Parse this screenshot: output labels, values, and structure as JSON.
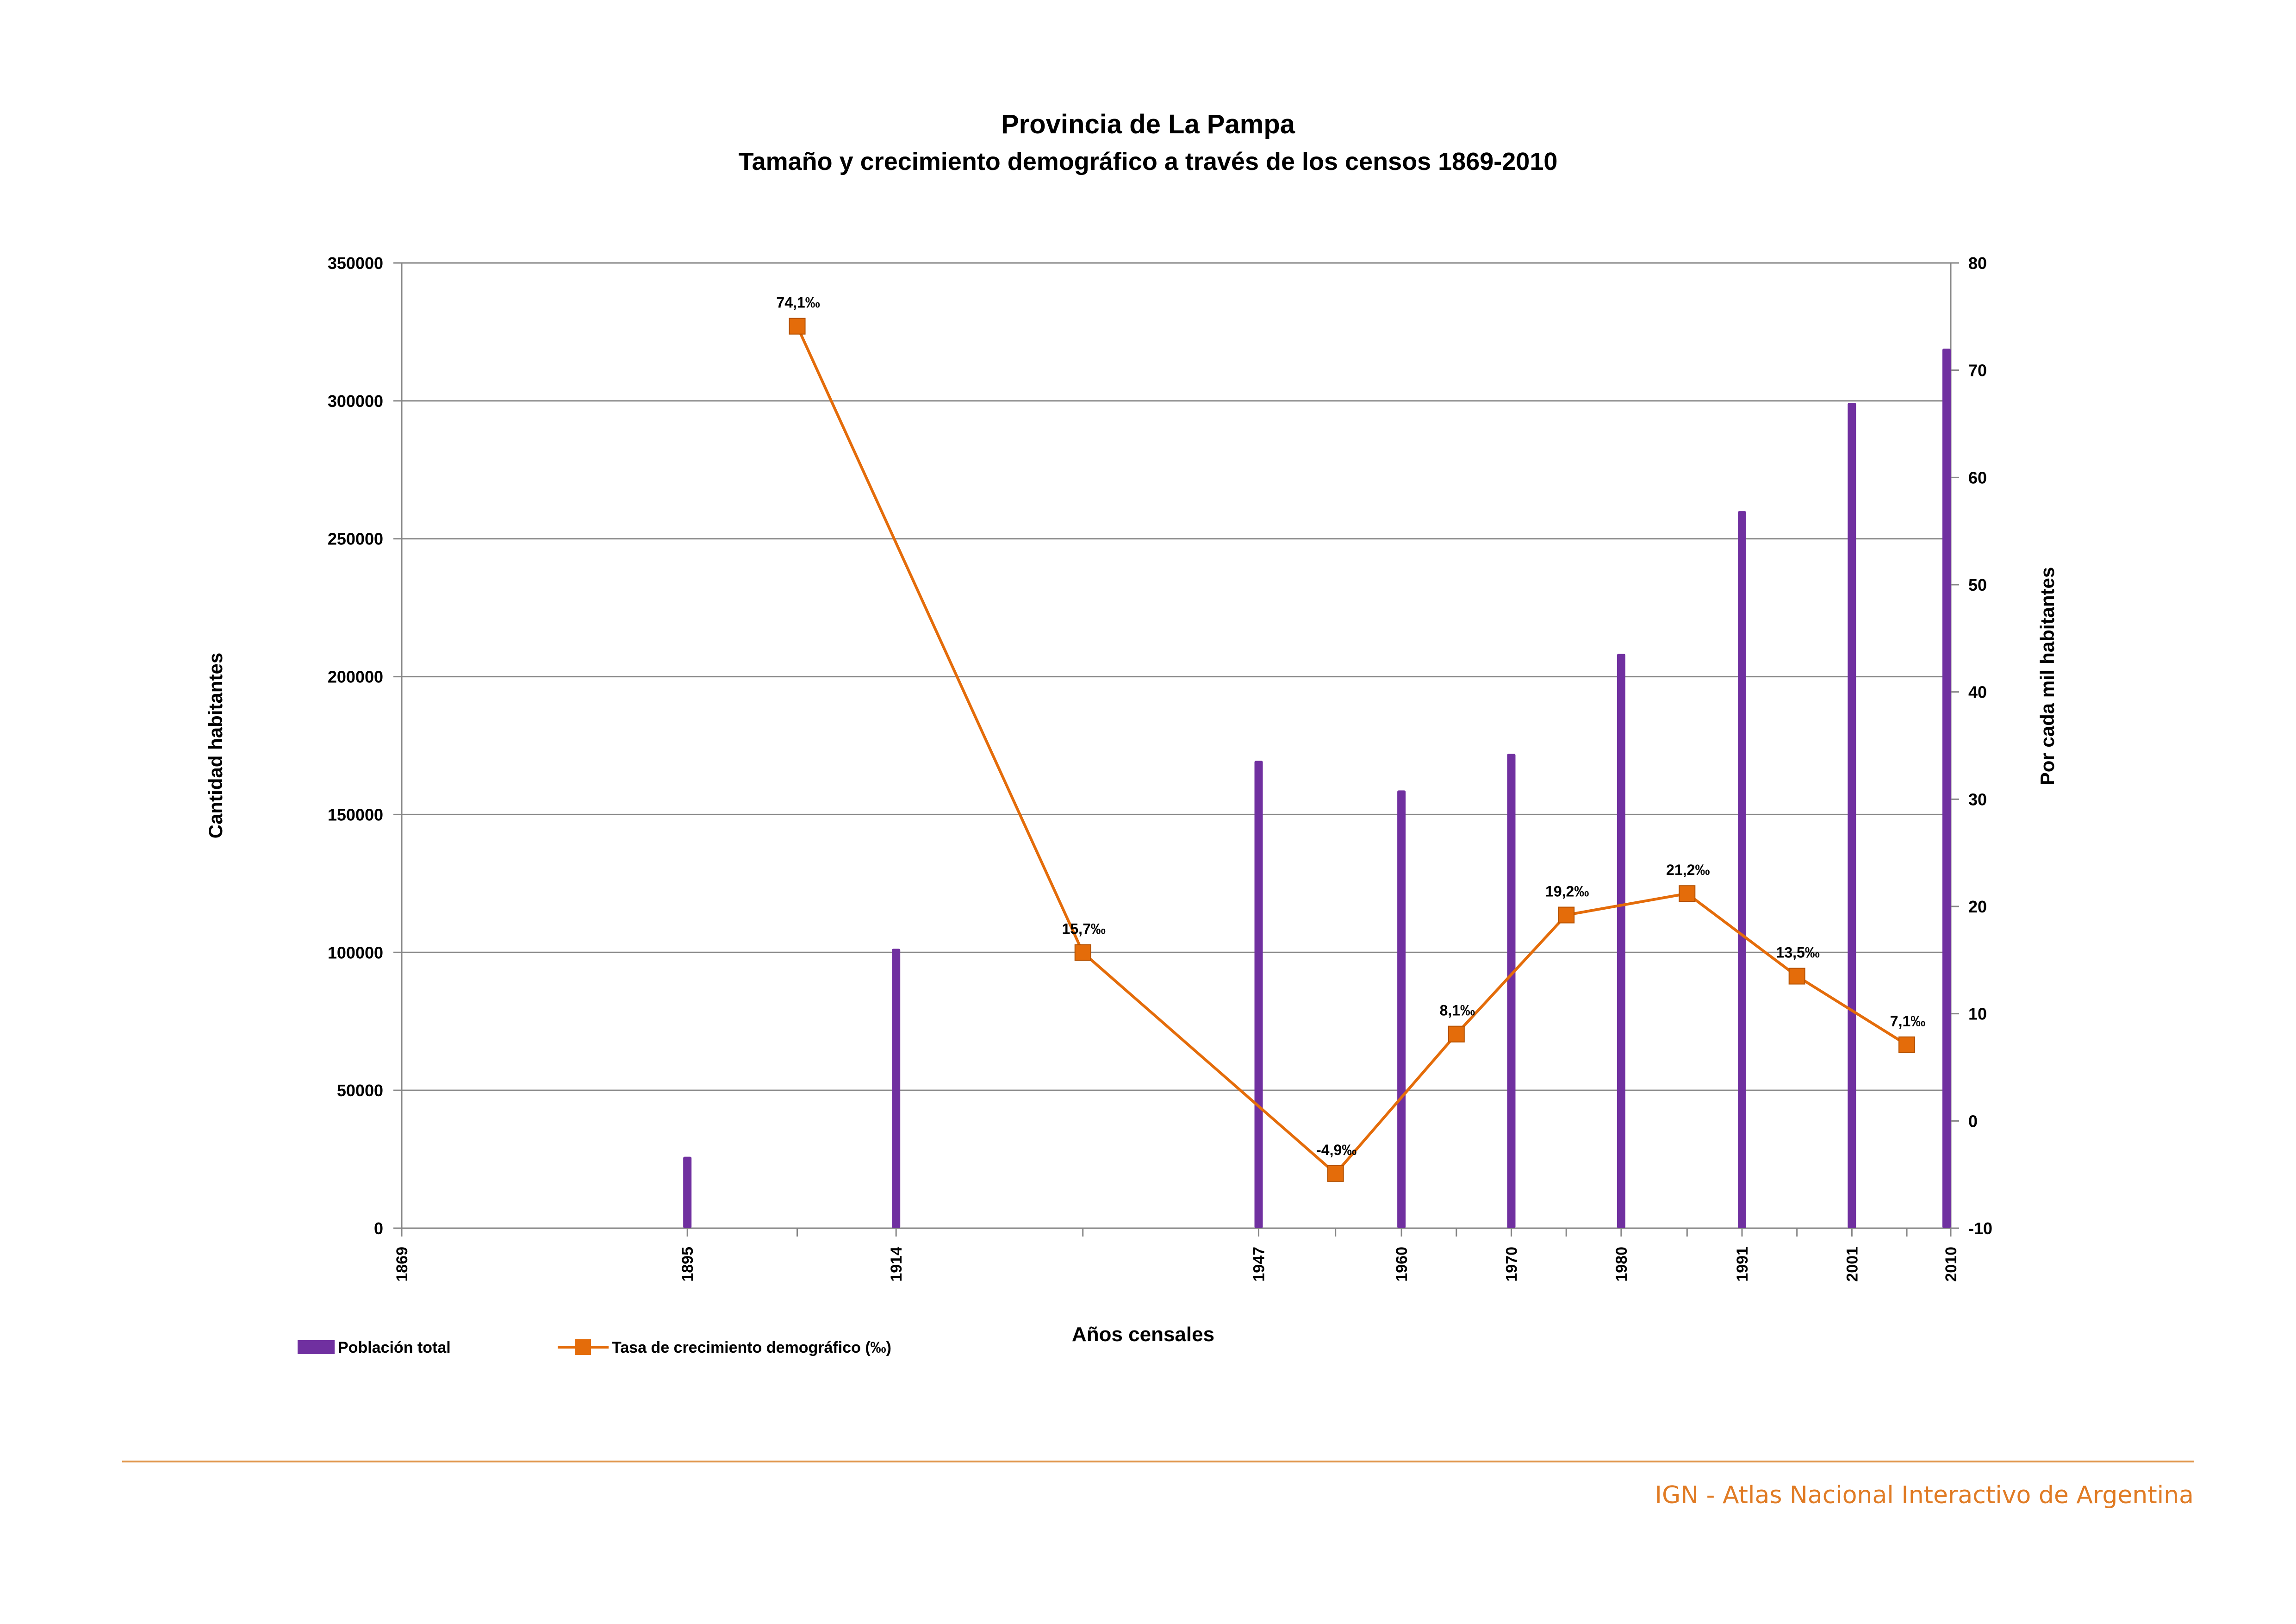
{
  "chart_data": {
    "type": "bar",
    "title": "Provincia de La Pampa",
    "subtitle": "Tamaño y crecimiento demográfico a través de los censos 1869-2010",
    "xlabel": "Años censales",
    "ylabel_left": "Cantidad habitantes",
    "ylabel_right": "Por cada mil habitantes",
    "ylim_left": [
      0,
      350000
    ],
    "ylim_right": [
      -10,
      80
    ],
    "yticks_left": [
      0,
      50000,
      100000,
      150000,
      200000,
      250000,
      300000,
      350000
    ],
    "yticks_right": [
      -10,
      0,
      10,
      20,
      30,
      40,
      50,
      60,
      70,
      80
    ],
    "xlim": [
      1869,
      2010
    ],
    "grid": true,
    "legend_position": "bottom-left",
    "series": [
      {
        "name": "Población total",
        "type": "bar",
        "axis": "left",
        "color": "#7030a0",
        "x": [
          1869,
          1895,
          1914,
          1947,
          1960,
          1970,
          1980,
          1991,
          2001,
          2010
        ],
        "values": [
          0,
          25914,
          101338,
          169480,
          158746,
          172029,
          208260,
          259996,
          299294,
          318951
        ],
        "tick_labels": [
          "1869",
          "1895",
          "1914",
          "1947",
          "1960",
          "1970",
          "1980",
          "1991",
          "2001",
          "2010"
        ]
      },
      {
        "name": "Tasa de crecimiento demográfico (‰)",
        "type": "line",
        "axis": "right",
        "color": "#e46c0a",
        "x": [
          1905,
          1931,
          1954,
          1965,
          1975,
          1986,
          1996,
          2006
        ],
        "values": [
          74.1,
          15.7,
          -4.9,
          8.1,
          19.2,
          21.2,
          13.5,
          7.1
        ],
        "labels": [
          "74,1‰",
          "15,7‰",
          "-4,9‰",
          "8,1‰",
          "19,2‰",
          "21,2‰",
          "13,5‰",
          "7,1‰"
        ]
      }
    ]
  },
  "footer": {
    "source": "IGN - Atlas Nacional Interactivo de Argentina"
  }
}
